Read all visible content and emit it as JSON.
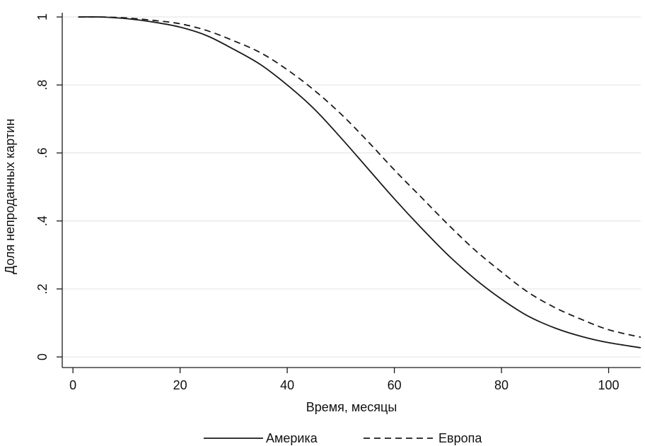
{
  "chart_data": {
    "type": "line",
    "title": "",
    "xlabel": "Время, месяцы",
    "ylabel": "Доля непроданных картин",
    "xlim": [
      -2,
      106
    ],
    "ylim": [
      0,
      1
    ],
    "grid": "horizontal",
    "legend_position": "bottom",
    "x_ticks": [
      "0",
      "20",
      "40",
      "60",
      "80",
      "100"
    ],
    "y_ticks": [
      "0",
      ".2",
      ".4",
      ".6",
      ".8",
      "1"
    ],
    "x": [
      1,
      5,
      10,
      15,
      20,
      25,
      30,
      35,
      40,
      45,
      50,
      55,
      60,
      65,
      70,
      75,
      80,
      85,
      90,
      95,
      100,
      106
    ],
    "series": [
      {
        "name": "Америка",
        "style": "solid",
        "values": [
          1.0,
          1.0,
          0.995,
          0.985,
          0.97,
          0.945,
          0.905,
          0.86,
          0.8,
          0.73,
          0.645,
          0.555,
          0.465,
          0.38,
          0.3,
          0.23,
          0.17,
          0.12,
          0.085,
          0.06,
          0.042,
          0.027
        ]
      },
      {
        "name": "Европа",
        "style": "dashed",
        "values": [
          1.0,
          1.0,
          0.997,
          0.99,
          0.98,
          0.96,
          0.93,
          0.895,
          0.845,
          0.785,
          0.715,
          0.635,
          0.55,
          0.47,
          0.39,
          0.315,
          0.25,
          0.19,
          0.145,
          0.11,
          0.08,
          0.058
        ]
      }
    ],
    "colors": {
      "line": "#1a1a1a",
      "grid": "#e6e6e6"
    }
  }
}
